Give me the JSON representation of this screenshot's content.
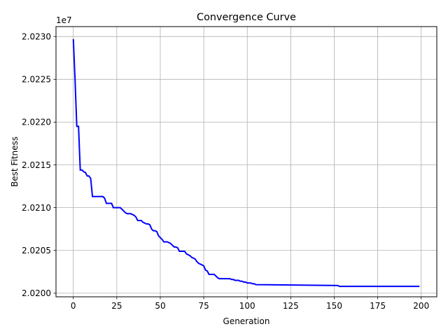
{
  "chart_data": {
    "type": "line",
    "title": "Convergence Curve",
    "xlabel": "Generation",
    "ylabel": "Best Fitness",
    "offset_label": "1e7",
    "xlim": [
      -9.95,
      208.95
    ],
    "ylim": [
      20199580,
      20231160
    ],
    "xticks": [
      0,
      25,
      50,
      75,
      100,
      125,
      150,
      175,
      200
    ],
    "xtick_labels": [
      "0",
      "25",
      "50",
      "75",
      "100",
      "125",
      "150",
      "175",
      "200"
    ],
    "yticks": [
      20200000,
      20205000,
      20210000,
      20215000,
      20220000,
      20225000,
      20230000
    ],
    "ytick_labels": [
      "2.0200",
      "2.0205",
      "2.0210",
      "2.0215",
      "2.0220",
      "2.0225",
      "2.0230"
    ],
    "grid": true,
    "line_color": "#0000ff",
    "series": [
      {
        "x": [
          0,
          1,
          2,
          3,
          4,
          5,
          6,
          7,
          8,
          9,
          10,
          11,
          12,
          13,
          14,
          15,
          16,
          17,
          18,
          19,
          20,
          21,
          22,
          23,
          24,
          25,
          26,
          27,
          28,
          29,
          30,
          31,
          32,
          33,
          34,
          35,
          36,
          37,
          38,
          39,
          40,
          41,
          42,
          43,
          44,
          45,
          46,
          47,
          48,
          49,
          50,
          51,
          52,
          53,
          54,
          55,
          56,
          57,
          58,
          59,
          60,
          61,
          62,
          63,
          64,
          65,
          66,
          67,
          68,
          69,
          70,
          71,
          72,
          73,
          74,
          75,
          76,
          77,
          78,
          79,
          80,
          81,
          82,
          83,
          84,
          85,
          86,
          87,
          88,
          89,
          90,
          91,
          92,
          93,
          94,
          95,
          96,
          97,
          98,
          99,
          100,
          101,
          102,
          103,
          104,
          105,
          152,
          153,
          199
        ],
        "y": [
          20229700,
          20225000,
          20219500,
          20219500,
          20214400,
          20214400,
          20214200,
          20214100,
          20213700,
          20213700,
          20213400,
          20211300,
          20211300,
          20211300,
          20211300,
          20211300,
          20211300,
          20211300,
          20211100,
          20210500,
          20210500,
          20210500,
          20210500,
          20210000,
          20210000,
          20210000,
          20210000,
          20210000,
          20209800,
          20209600,
          20209400,
          20209300,
          20209300,
          20209300,
          20209200,
          20209100,
          20208900,
          20208500,
          20208500,
          20208500,
          20208300,
          20208200,
          20208100,
          20208100,
          20208000,
          20207500,
          20207300,
          20207300,
          20207200,
          20206700,
          20206500,
          20206300,
          20206000,
          20206000,
          20206000,
          20205900,
          20205800,
          20205600,
          20205400,
          20205400,
          20205300,
          20204900,
          20204900,
          20204900,
          20204900,
          20204600,
          20204500,
          20204400,
          20204200,
          20204100,
          20204000,
          20203700,
          20203500,
          20203400,
          20203300,
          20203200,
          20202700,
          20202600,
          20202200,
          20202200,
          20202200,
          20202200,
          20202000,
          20201800,
          20201700,
          20201700,
          20201700,
          20201700,
          20201700,
          20201700,
          20201700,
          20201600,
          20201600,
          20201500,
          20201500,
          20201500,
          20201400,
          20201400,
          20201300,
          20201300,
          20201200,
          20201200,
          20201200,
          20201100,
          20201100,
          20201000,
          20200900,
          20200800,
          20200800
        ]
      }
    ]
  }
}
